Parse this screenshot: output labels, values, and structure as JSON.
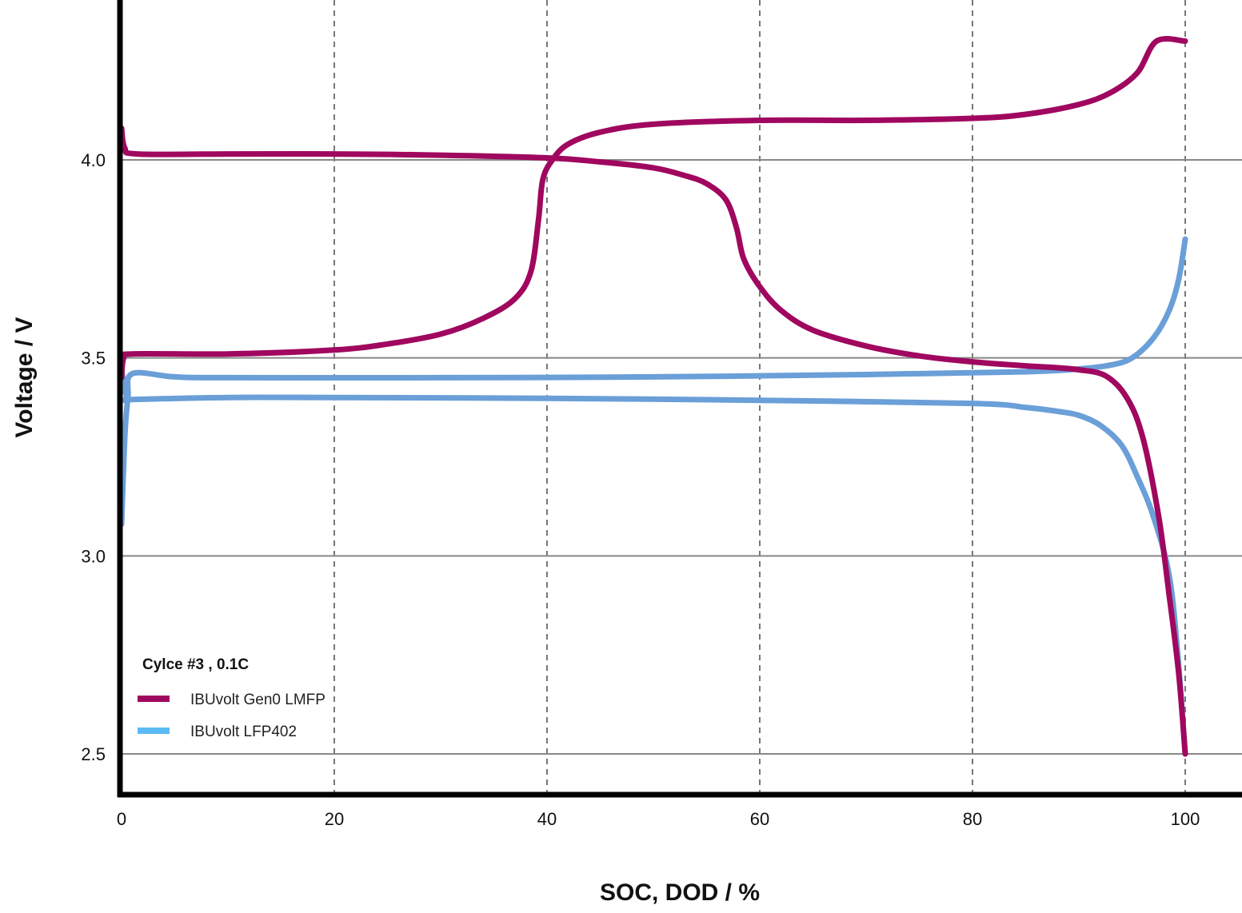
{
  "chart_data": {
    "type": "line",
    "xlabel": "SOC, DOD / %",
    "ylabel": "Voltage / V",
    "xlim": [
      0,
      105
    ],
    "ylim": [
      2.4,
      4.4
    ],
    "xticks": [
      "0",
      "20",
      "40",
      "60",
      "80",
      "100"
    ],
    "yticks": [
      "2.5",
      "3.0",
      "3.5",
      "4.0"
    ],
    "grid": {
      "x": "dashed",
      "y": "solid"
    },
    "legend": {
      "title": "Cylce #3 ,  0.1C",
      "placement": "bottom-left",
      "entries": [
        "IBUvolt Gen0 LMFP",
        "IBUvolt LFP402"
      ]
    },
    "series": [
      {
        "name": "IBUvolt Gen0 LMFP",
        "role": "charge",
        "color": "#a0075f",
        "points": [
          [
            0,
            3.45
          ],
          [
            0.2,
            3.5
          ],
          [
            1,
            3.51
          ],
          [
            10,
            3.51
          ],
          [
            20,
            3.52
          ],
          [
            25,
            3.535
          ],
          [
            30,
            3.56
          ],
          [
            34,
            3.6
          ],
          [
            37,
            3.65
          ],
          [
            38.5,
            3.72
          ],
          [
            39.2,
            3.85
          ],
          [
            39.6,
            3.95
          ],
          [
            40.5,
            4.0
          ],
          [
            42,
            4.04
          ],
          [
            45,
            4.07
          ],
          [
            50,
            4.09
          ],
          [
            60,
            4.1
          ],
          [
            70,
            4.1
          ],
          [
            80,
            4.105
          ],
          [
            85,
            4.115
          ],
          [
            90,
            4.14
          ],
          [
            93,
            4.17
          ],
          [
            95.5,
            4.22
          ],
          [
            97.3,
            4.3
          ],
          [
            100,
            4.3
          ]
        ]
      },
      {
        "name": "IBUvolt Gen0 LMFP",
        "role": "discharge",
        "color": "#a0075f",
        "points": [
          [
            0,
            4.08
          ],
          [
            0.3,
            4.03
          ],
          [
            1.5,
            4.015
          ],
          [
            10,
            4.015
          ],
          [
            20,
            4.015
          ],
          [
            30,
            4.012
          ],
          [
            40,
            4.005
          ],
          [
            45,
            3.995
          ],
          [
            50,
            3.98
          ],
          [
            53,
            3.96
          ],
          [
            55,
            3.94
          ],
          [
            56.8,
            3.9
          ],
          [
            57.8,
            3.83
          ],
          [
            58.5,
            3.75
          ],
          [
            60,
            3.68
          ],
          [
            62,
            3.62
          ],
          [
            65,
            3.57
          ],
          [
            70,
            3.53
          ],
          [
            75,
            3.505
          ],
          [
            80,
            3.49
          ],
          [
            85,
            3.48
          ],
          [
            88,
            3.475
          ],
          [
            90,
            3.47
          ],
          [
            92.5,
            3.455
          ],
          [
            94.5,
            3.4
          ],
          [
            96,
            3.3
          ],
          [
            97.5,
            3.1
          ],
          [
            98.5,
            2.9
          ],
          [
            99.4,
            2.7
          ],
          [
            100,
            2.5
          ]
        ]
      },
      {
        "name": "IBUvolt LFP402",
        "role": "charge",
        "color": "#6a9fd8",
        "points": [
          [
            0,
            3.08
          ],
          [
            0.3,
            3.3
          ],
          [
            0.6,
            3.4
          ],
          [
            1,
            3.46
          ],
          [
            5,
            3.452
          ],
          [
            10,
            3.45
          ],
          [
            30,
            3.45
          ],
          [
            50,
            3.452
          ],
          [
            70,
            3.458
          ],
          [
            85,
            3.465
          ],
          [
            90,
            3.472
          ],
          [
            93,
            3.482
          ],
          [
            95,
            3.5
          ],
          [
            97,
            3.55
          ],
          [
            98.5,
            3.62
          ],
          [
            99.4,
            3.7
          ],
          [
            100,
            3.8
          ]
        ]
      },
      {
        "name": "IBUvolt LFP402",
        "role": "discharge",
        "color": "#6a9fd8",
        "points": [
          [
            0,
            3.47
          ],
          [
            0.3,
            3.42
          ],
          [
            0.6,
            3.395
          ],
          [
            1,
            3.395
          ],
          [
            10,
            3.4
          ],
          [
            20,
            3.4
          ],
          [
            40,
            3.398
          ],
          [
            60,
            3.393
          ],
          [
            80,
            3.385
          ],
          [
            85,
            3.375
          ],
          [
            88,
            3.365
          ],
          [
            90,
            3.355
          ],
          [
            92,
            3.33
          ],
          [
            94,
            3.28
          ],
          [
            95.5,
            3.2
          ],
          [
            97,
            3.1
          ],
          [
            98.5,
            2.95
          ],
          [
            99.3,
            2.75
          ],
          [
            100,
            2.5
          ]
        ]
      }
    ]
  }
}
